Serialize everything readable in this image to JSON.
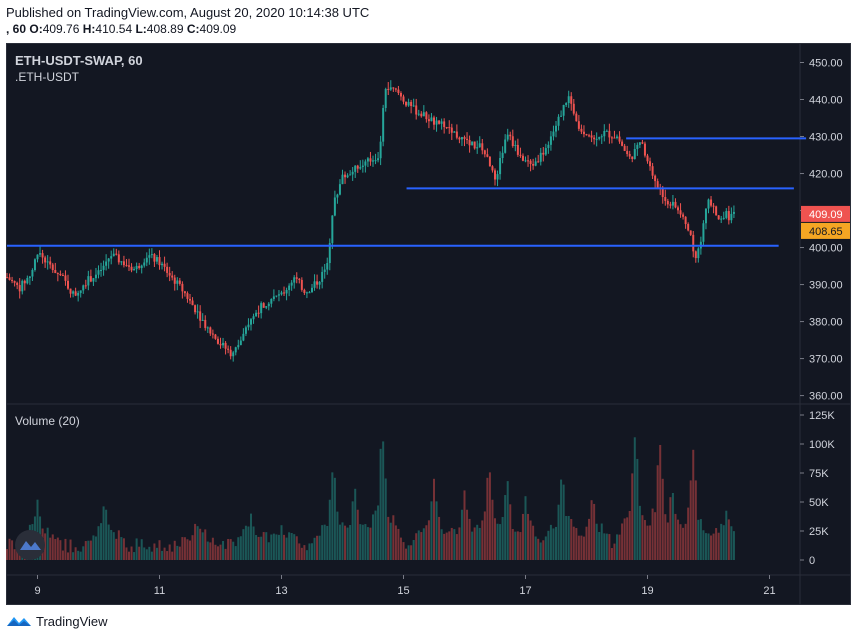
{
  "header": {
    "published": "Published on TradingView.com, August 20, 2020 10:14:38 UTC",
    "interval_prefix": ", 60",
    "open_label": "O:",
    "open_value": "409.76",
    "high_label": "H:",
    "high_value": "410.54",
    "low_label": "L:",
    "low_value": "408.89",
    "close_label": "C:",
    "close_value": "409.09"
  },
  "legend": {
    "symbol": "ETH-USDT-SWAP, 60",
    "source": ".ETH-USDT"
  },
  "volume_pane": {
    "title": "Volume (20)"
  },
  "footer": {
    "brand": "TradingView"
  },
  "colors": {
    "background": "#131722",
    "up": "#26a69a",
    "down": "#ef5350",
    "line": "#2962ff",
    "last_price_badge": "#ef5350",
    "alt_price_badge": "#f5a623"
  },
  "icons": [
    "tradingview-logo-icon",
    "watermark-icon"
  ],
  "chart_data": {
    "type": "candlestick",
    "price_axis": {
      "ticks": [
        "450.00",
        "440.00",
        "430.00",
        "420.00",
        "410.00",
        "400.00",
        "390.00",
        "380.00",
        "370.00",
        "360.00"
      ],
      "range": [
        358,
        455
      ]
    },
    "time_axis": {
      "ticks": [
        "9",
        "11",
        "13",
        "15",
        "17",
        "19",
        "21"
      ],
      "tick_days": [
        9,
        11,
        13,
        15,
        17,
        19,
        21
      ],
      "range_days": [
        8.5,
        21.5
      ]
    },
    "price_labels": {
      "last": "409.09",
      "alt": "408.65"
    },
    "horizontal_lines": [
      {
        "price": 400.5,
        "from_day": 8.5,
        "to_day": 21.15
      },
      {
        "price": 416.0,
        "from_day": 15.05,
        "to_day": 21.4
      },
      {
        "price": 429.5,
        "from_day": 18.65,
        "to_day": 21.6
      }
    ],
    "price_path": [
      [
        8.5,
        392
      ],
      [
        8.7,
        389
      ],
      [
        8.9,
        393
      ],
      [
        9.0,
        399
      ],
      [
        9.2,
        395
      ],
      [
        9.4,
        392
      ],
      [
        9.6,
        387
      ],
      [
        9.8,
        391
      ],
      [
        10.0,
        393
      ],
      [
        10.2,
        398
      ],
      [
        10.4,
        396
      ],
      [
        10.6,
        394
      ],
      [
        10.8,
        398
      ],
      [
        11.0,
        396
      ],
      [
        11.2,
        392
      ],
      [
        11.4,
        388
      ],
      [
        11.6,
        383
      ],
      [
        11.8,
        378
      ],
      [
        12.0,
        374
      ],
      [
        12.2,
        371
      ],
      [
        12.4,
        377
      ],
      [
        12.6,
        383
      ],
      [
        12.8,
        386
      ],
      [
        13.0,
        387
      ],
      [
        13.2,
        392
      ],
      [
        13.4,
        388
      ],
      [
        13.6,
        391
      ],
      [
        13.75,
        395
      ],
      [
        13.85,
        412
      ],
      [
        14.0,
        419
      ],
      [
        14.2,
        421
      ],
      [
        14.4,
        423
      ],
      [
        14.6,
        425
      ],
      [
        14.7,
        443
      ],
      [
        14.9,
        442
      ],
      [
        15.1,
        438
      ],
      [
        15.3,
        436
      ],
      [
        15.5,
        434
      ],
      [
        15.7,
        433
      ],
      [
        15.9,
        430
      ],
      [
        16.1,
        428
      ],
      [
        16.3,
        427
      ],
      [
        16.5,
        418
      ],
      [
        16.7,
        431
      ],
      [
        16.9,
        425
      ],
      [
        17.1,
        422
      ],
      [
        17.3,
        426
      ],
      [
        17.5,
        433
      ],
      [
        17.7,
        441
      ],
      [
        17.9,
        432
      ],
      [
        18.1,
        430
      ],
      [
        18.3,
        431
      ],
      [
        18.5,
        430
      ],
      [
        18.7,
        424
      ],
      [
        18.9,
        428
      ],
      [
        19.1,
        419
      ],
      [
        19.3,
        413
      ],
      [
        19.5,
        410
      ],
      [
        19.7,
        404
      ],
      [
        19.8,
        396
      ],
      [
        20.0,
        413
      ],
      [
        20.1,
        410
      ],
      [
        20.2,
        407
      ],
      [
        20.3,
        409
      ],
      [
        20.35,
        408
      ],
      [
        20.45,
        409.09
      ]
    ],
    "volume_axis": {
      "ticks": [
        "125K",
        "100K",
        "75K",
        "50K",
        "25K",
        "0"
      ],
      "range": [
        0,
        125000
      ]
    },
    "volume_spikes": [
      [
        9.0,
        52000
      ],
      [
        10.1,
        52000
      ],
      [
        11.6,
        35000
      ],
      [
        12.5,
        40000
      ],
      [
        13.0,
        30000
      ],
      [
        13.85,
        85000
      ],
      [
        14.2,
        65000
      ],
      [
        14.65,
        115000
      ],
      [
        15.5,
        70000
      ],
      [
        16.0,
        60000
      ],
      [
        16.4,
        85000
      ],
      [
        16.7,
        72000
      ],
      [
        17.0,
        55000
      ],
      [
        17.6,
        78000
      ],
      [
        18.1,
        58000
      ],
      [
        18.8,
        112000
      ],
      [
        19.2,
        105000
      ],
      [
        19.4,
        65000
      ],
      [
        19.75,
        95000
      ],
      [
        20.3,
        45000
      ]
    ]
  }
}
